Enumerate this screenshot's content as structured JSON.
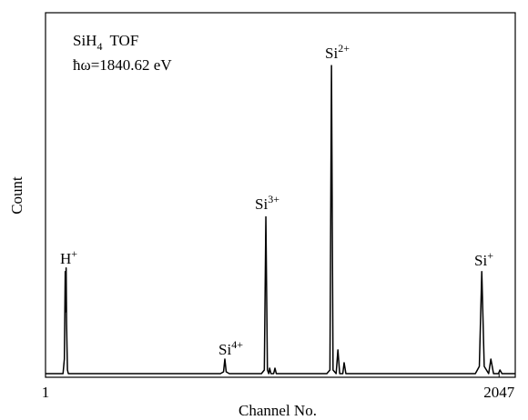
{
  "chart_data": {
    "type": "line",
    "title": {
      "text": "SiH",
      "sub": "4",
      "rest": "TOF"
    },
    "subtitle": "ħω=1840.62 eV",
    "x_label": "Channel No.",
    "y_label": "Count",
    "annotations": [
      {
        "text": "H",
        "sup": "+"
      },
      {
        "text": "Si",
        "sup": "4+"
      },
      {
        "text": "Si",
        "sup": "3+"
      },
      {
        "text": "Si",
        "sup": "2+"
      },
      {
        "text": "Si",
        "sup": "+"
      }
    ],
    "x": [
      1,
      80,
      86,
      90,
      92,
      94,
      96,
      98,
      100,
      104,
      110,
      790,
      804,
      810,
      816,
      830,
      975,
      988,
      995,
      1002,
      1008,
      1012,
      1018,
      1030,
      1036,
      1042,
      1270,
      1284,
      1291,
      1298,
      1312,
      1320,
      1328,
      1342,
      1348,
      1356,
      1940,
      1958,
      1969,
      1980,
      2000,
      2010,
      2022,
      2044,
      2051,
      2060,
      2120
    ],
    "values": [
      1,
      1,
      5,
      29,
      18,
      30,
      15,
      8,
      2,
      1,
      1,
      1,
      1.5,
      5,
      1.5,
      1,
      1,
      2,
      44,
      2,
      1,
      2.5,
      1,
      1,
      2.5,
      1,
      1,
      2,
      85.5,
      2,
      1,
      7.5,
      1,
      1,
      4,
      1,
      1,
      3,
      29,
      3,
      1,
      5,
      1,
      1,
      2,
      1,
      1
    ],
    "color": "#000000",
    "xlim": [
      1,
      2120
    ],
    "xticks": [
      1,
      2047
    ],
    "ylim": [
      0,
      100
    ]
  }
}
